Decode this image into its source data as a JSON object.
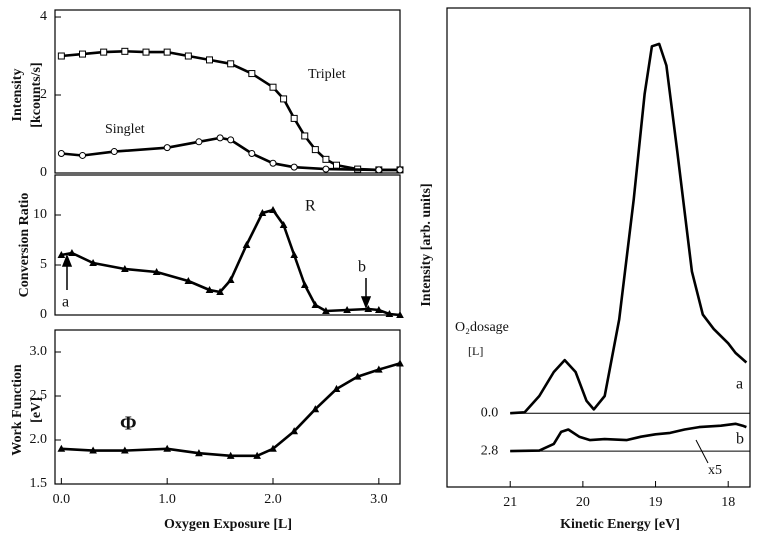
{
  "chart_data": [
    {
      "type": "line",
      "ylabel": [
        "Intensity",
        "[kcounts/s]"
      ],
      "xlim": [
        -0.06,
        3.2
      ],
      "ylim": [
        0,
        4.18
      ],
      "yticks": [
        0,
        2,
        4
      ],
      "annotations": [
        "Triplet",
        "Singlet"
      ],
      "series": [
        {
          "name": "Triplet",
          "marker": "square",
          "color": "#000",
          "x": [
            0,
            0.2,
            0.4,
            0.6,
            0.8,
            1.0,
            1.2,
            1.4,
            1.6,
            1.8,
            2.0,
            2.1,
            2.2,
            2.3,
            2.4,
            2.5,
            2.6,
            2.8,
            3.0,
            3.2
          ],
          "values": [
            3.0,
            3.05,
            3.1,
            3.12,
            3.1,
            3.1,
            3.0,
            2.9,
            2.8,
            2.55,
            2.2,
            1.9,
            1.4,
            0.95,
            0.6,
            0.35,
            0.2,
            0.1,
            0.08,
            0.08
          ]
        },
        {
          "name": "Singlet",
          "marker": "circle",
          "color": "#000",
          "x": [
            0,
            0.2,
            0.5,
            1.0,
            1.3,
            1.5,
            1.6,
            1.8,
            2.0,
            2.2,
            2.5,
            3.0,
            3.2
          ],
          "values": [
            0.5,
            0.45,
            0.55,
            0.65,
            0.8,
            0.9,
            0.85,
            0.5,
            0.25,
            0.15,
            0.1,
            0.08,
            0.08
          ]
        }
      ]
    },
    {
      "type": "line",
      "ylabel": [
        "Conversion  Ratio"
      ],
      "xlim": [
        -0.06,
        3.2
      ],
      "ylim": [
        0,
        14
      ],
      "yticks": [
        0,
        5,
        10
      ],
      "annotations": [
        "R",
        "a",
        "b"
      ],
      "series": [
        {
          "name": "Conversion Ratio",
          "marker": "triangle",
          "color": "#000",
          "x": [
            0,
            0.1,
            0.3,
            0.6,
            0.9,
            1.2,
            1.4,
            1.5,
            1.6,
            1.75,
            1.9,
            2.0,
            2.1,
            2.2,
            2.3,
            2.4,
            2.5,
            2.7,
            2.9,
            3.0,
            3.1,
            3.2
          ],
          "values": [
            6,
            6.2,
            5.2,
            4.6,
            4.3,
            3.4,
            2.5,
            2.3,
            3.5,
            7,
            10.2,
            10.5,
            9,
            6,
            3,
            1,
            0.4,
            0.5,
            0.6,
            0.5,
            0.1,
            0
          ]
        }
      ]
    },
    {
      "type": "line",
      "ylabel": [
        "Work Function",
        "[eV]"
      ],
      "xlabel": "Oxygen Exposure [L]",
      "xlim": [
        -0.06,
        3.2
      ],
      "ylim": [
        1.5,
        3.25
      ],
      "xticks": [
        {
          "value": 0,
          "label": "0.0"
        },
        {
          "value": 1,
          "label": "1.0"
        },
        {
          "value": 2,
          "label": "2.0"
        },
        {
          "value": 3,
          "label": "3.0"
        }
      ],
      "yticks": [
        1.5,
        {
          "value": 2,
          "label": "2.0"
        },
        2.5,
        {
          "value": 3,
          "label": "3.0"
        }
      ],
      "annotations": [
        "Φ"
      ],
      "series": [
        {
          "name": "Work Function",
          "marker": "triangle",
          "color": "#000",
          "x": [
            0,
            0.3,
            0.6,
            1.0,
            1.3,
            1.6,
            1.85,
            2.0,
            2.2,
            2.4,
            2.6,
            2.8,
            3.0,
            3.2
          ],
          "values": [
            1.9,
            1.88,
            1.88,
            1.9,
            1.85,
            1.82,
            1.82,
            1.9,
            2.1,
            2.35,
            2.58,
            2.72,
            2.8,
            2.87
          ]
        }
      ]
    },
    {
      "type": "line",
      "ylabel": [
        "Intensity [arb. units]"
      ],
      "xlabel": "Kinetic Energy [eV]",
      "xlim": [
        21.87,
        17.7
      ],
      "ylim": [
        0,
        100
      ],
      "xticks": [
        21,
        20,
        19,
        18
      ],
      "legend_title": [
        "O₂dosage",
        "[L]"
      ],
      "annotations": [
        "a",
        "b",
        "x5"
      ],
      "baselines": [
        {
          "dosage": "0.0",
          "offset": 15.4
        },
        {
          "dosage": "2.8",
          "offset": 7.5
        }
      ],
      "series": [
        {
          "name": "a",
          "color": "#000",
          "x": [
            21.0,
            20.8,
            20.6,
            20.4,
            20.25,
            20.1,
            19.95,
            19.85,
            19.7,
            19.5,
            19.3,
            19.15,
            19.05,
            18.95,
            18.85,
            18.7,
            18.5,
            18.35,
            18.2,
            18.0,
            17.9,
            17.75
          ],
          "values": [
            15.4,
            15.6,
            19,
            24,
            26.5,
            24,
            18,
            16.2,
            19,
            35,
            60,
            82,
            92,
            92.5,
            88,
            70,
            45,
            36,
            33,
            30,
            28,
            26
          ]
        },
        {
          "name": "b",
          "color": "#000",
          "x": [
            21.0,
            20.6,
            20.4,
            20.3,
            20.2,
            20.05,
            19.9,
            19.7,
            19.4,
            19.2,
            19.0,
            18.8,
            18.6,
            18.4,
            18.1,
            17.9,
            17.8,
            17.75
          ],
          "values": [
            7.5,
            7.6,
            9,
            11.5,
            12,
            10.5,
            9.8,
            10,
            9.8,
            10.5,
            11,
            11.3,
            12,
            12.5,
            12.8,
            13.2,
            12.8,
            12.5
          ]
        }
      ]
    }
  ]
}
